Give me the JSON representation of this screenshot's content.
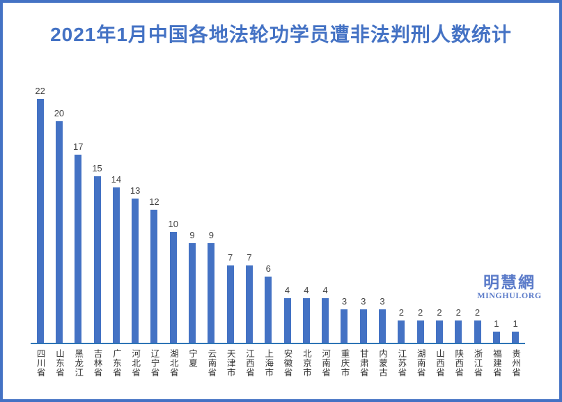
{
  "frame": {
    "border_color": "#4472C4",
    "background_color": "#ffffff"
  },
  "title": "2021年1月中国各地法轮功学员遭非法判刑人数统计",
  "title_color": "#4472C4",
  "watermark": {
    "line1": "明慧網",
    "line2": "MINGHUI.ORG",
    "color": "#5b7bc9"
  },
  "chart_data": {
    "type": "bar",
    "title": "2021年1月中国各地法轮功学员遭非法判刑人数统计",
    "categories": [
      "四川省",
      "山东省",
      "黑龙江",
      "吉林省",
      "广东省",
      "河北省",
      "辽宁省",
      "湖北省",
      "宁夏",
      "云南省",
      "天津市",
      "江西省",
      "上海市",
      "安徽省",
      "北京市",
      "河南省",
      "重庆市",
      "甘肃省",
      "内蒙古",
      "江苏省",
      "湖南省",
      "山西省",
      "陕西省",
      "浙江省",
      "福建省",
      "贵州省"
    ],
    "values": [
      22,
      20,
      17,
      15,
      14,
      13,
      12,
      10,
      9,
      9,
      7,
      7,
      6,
      4,
      4,
      4,
      3,
      3,
      3,
      2,
      2,
      2,
      2,
      2,
      1,
      1
    ],
    "xlabel": "",
    "ylabel": "",
    "ylim": [
      0,
      22
    ],
    "grid": false,
    "legend": false,
    "data_labels": true,
    "bar_color": "#4472C4",
    "axis_line_color": "#2E75B6",
    "value_label_color": "#404040",
    "category_label_color": "#333333",
    "category_label_orientation": "vertical-upright"
  }
}
